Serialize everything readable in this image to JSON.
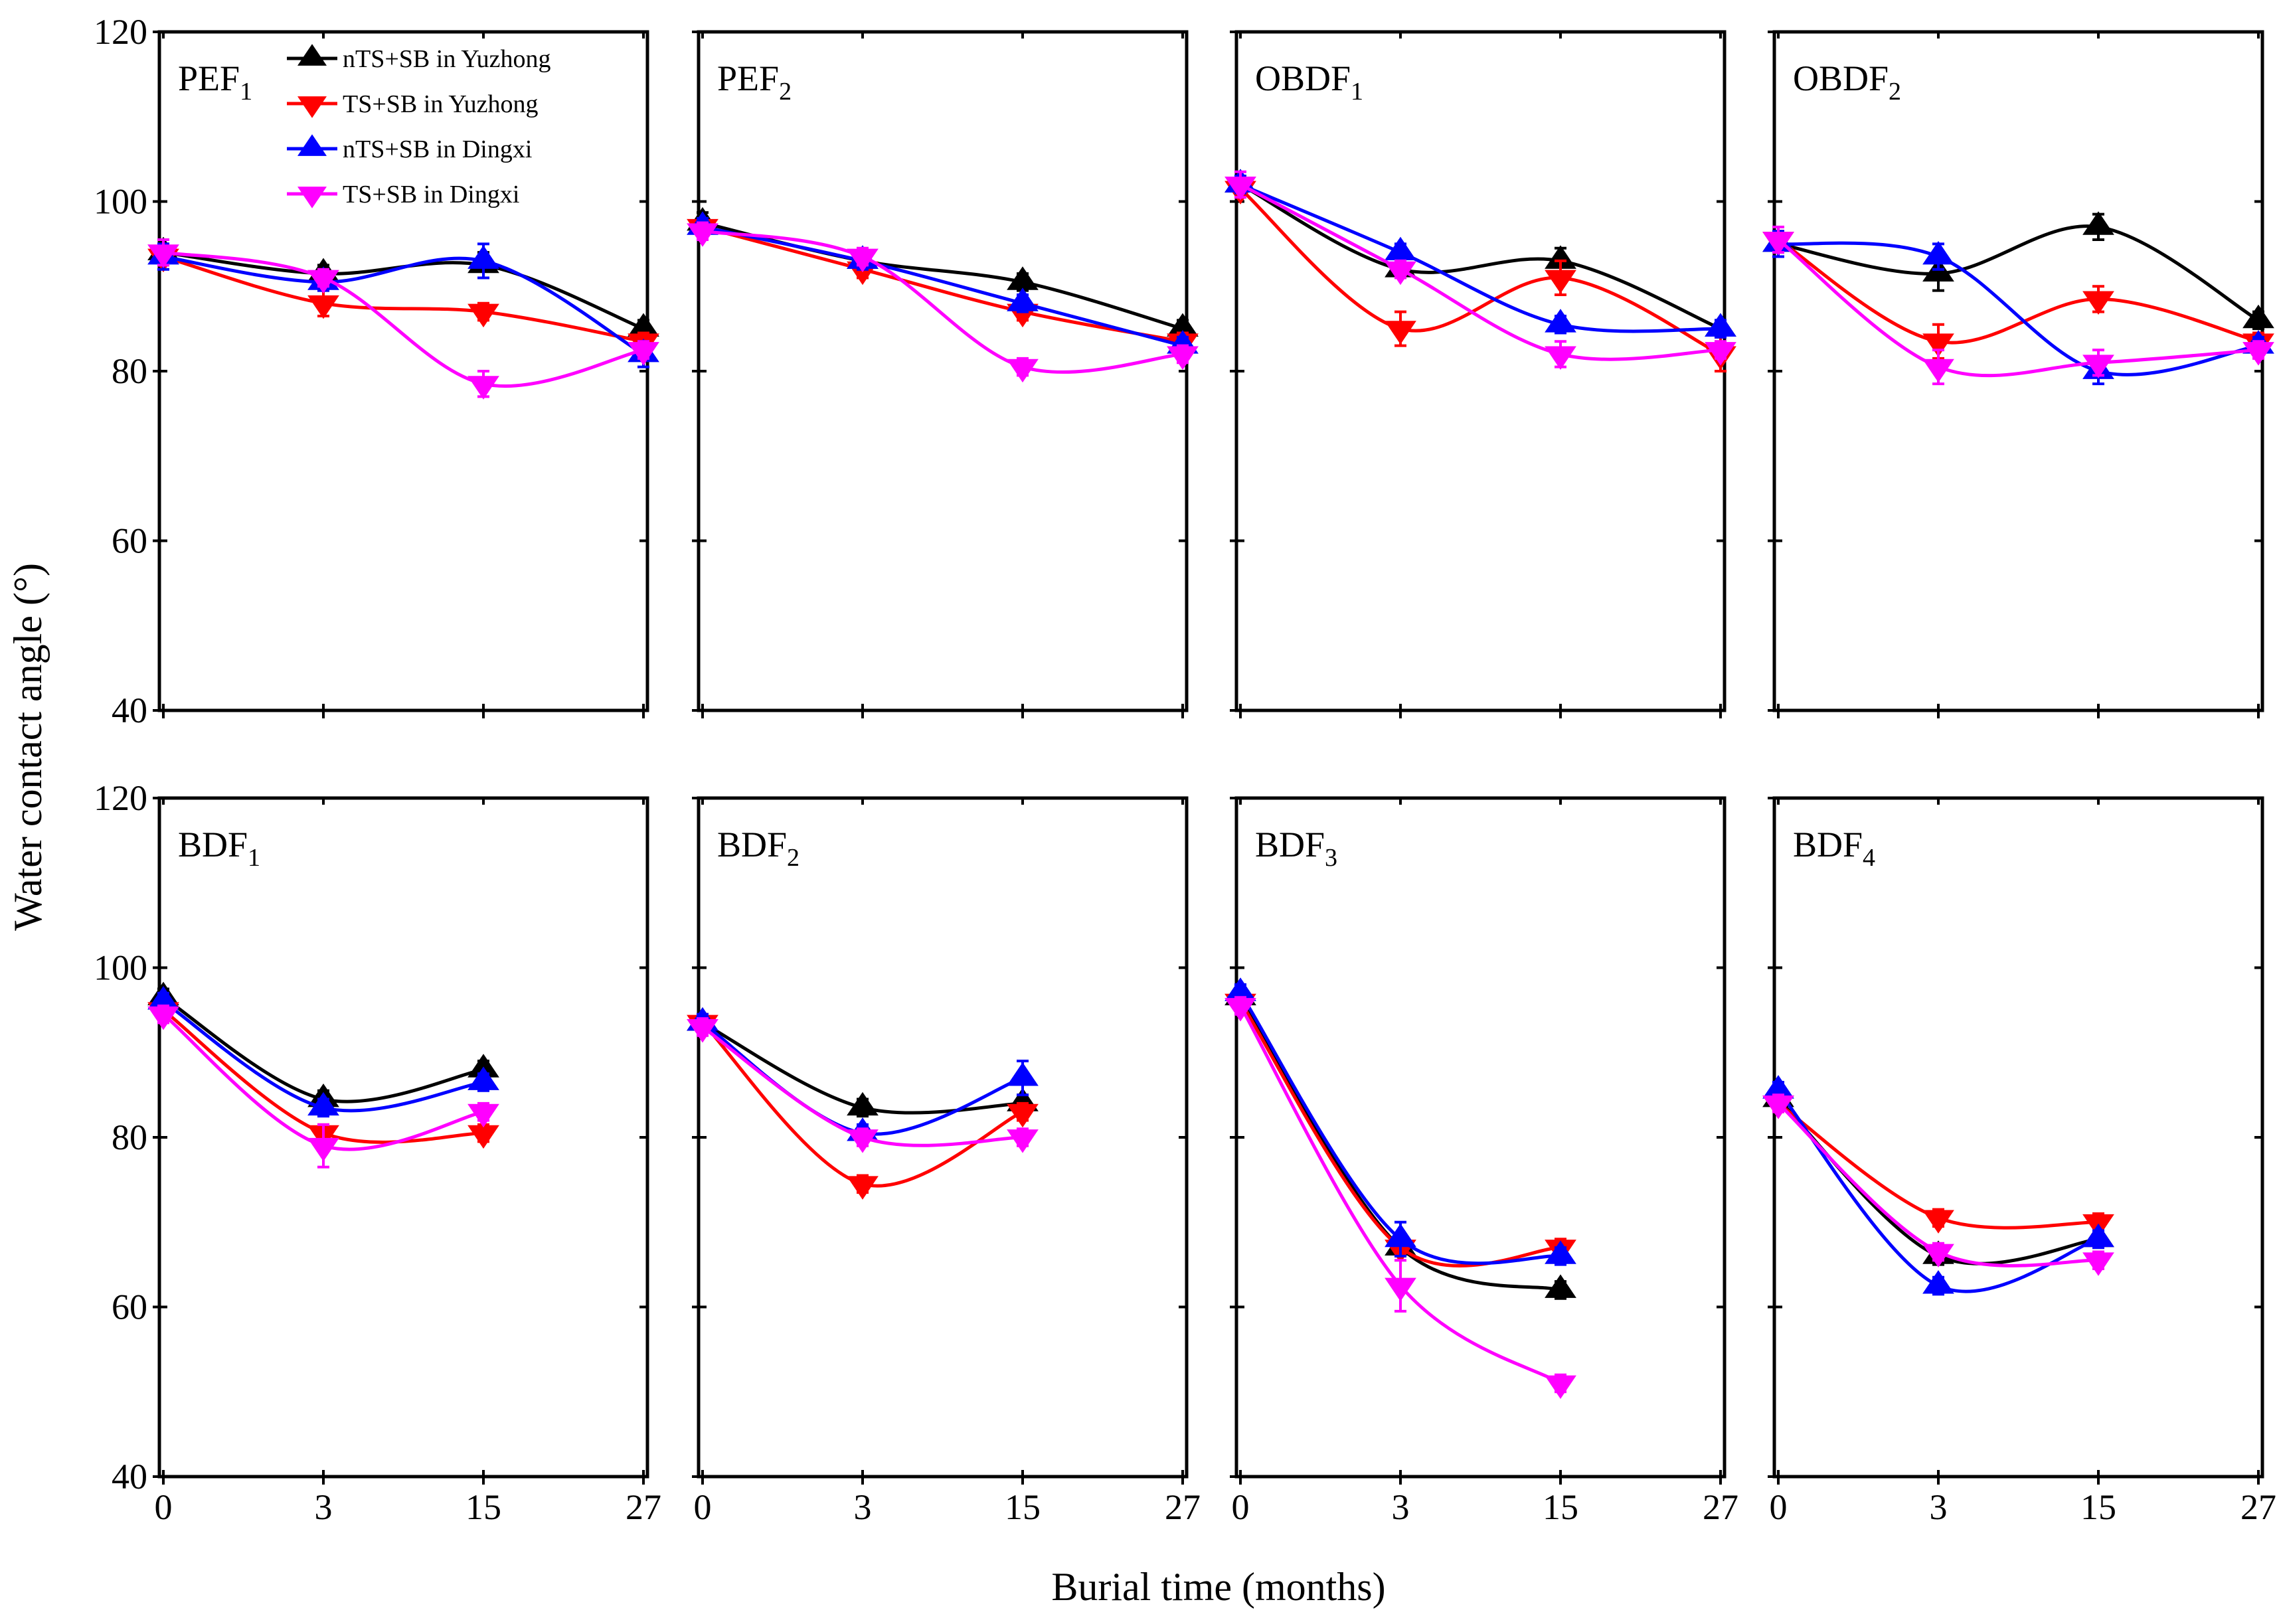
{
  "chart_data": {
    "type": "line",
    "ylabel": "Water contact angle (°)",
    "xlabel": "Burial time (months)",
    "x": [
      "0",
      "3",
      "15",
      "27"
    ],
    "ylim": [
      40,
      120
    ],
    "yticks": [
      40,
      60,
      80,
      100,
      120
    ],
    "colors": {
      "nTS+SB in Yuzhong": "#000000",
      "TS+SB in Yuzhong": "#ff0000",
      "nTS+SB in Dingxi": "#0000ff",
      "TS+SB in Dingxi": "#ff00ff"
    },
    "legend": [
      {
        "name": "nTS+SB in Yuzhong",
        "marker": "triangle-up"
      },
      {
        "name": "TS+SB in Yuzhong",
        "marker": "triangle-down"
      },
      {
        "name": "nTS+SB in Dingxi",
        "marker": "triangle-up"
      },
      {
        "name": "TS+SB in Dingxi",
        "marker": "triangle-down"
      }
    ],
    "panels": [
      {
        "title": "PEF",
        "sub": "1",
        "series": [
          {
            "name": "nTS+SB in Yuzhong",
            "values": [
              94,
              91.5,
              92.5,
              85
            ],
            "errors": [
              1,
              1,
              1.5,
              1
            ]
          },
          {
            "name": "TS+SB in Yuzhong",
            "values": [
              93.5,
              88,
              87,
              83.5
            ],
            "errors": [
              1,
              1.5,
              1,
              1
            ]
          },
          {
            "name": "nTS+SB in Dingxi",
            "values": [
              93.5,
              90.5,
              93,
              82
            ],
            "errors": [
              1.5,
              1,
              2,
              1.5
            ]
          },
          {
            "name": "TS+SB in Dingxi",
            "values": [
              94,
              91,
              78.5,
              82.5
            ],
            "errors": [
              1.5,
              1,
              1.5,
              1
            ]
          }
        ]
      },
      {
        "title": "PEF",
        "sub": "2",
        "series": [
          {
            "name": "nTS+SB in Yuzhong",
            "values": [
              97.5,
              93,
              90.5,
              85
            ],
            "errors": [
              1.2,
              1,
              1,
              1
            ]
          },
          {
            "name": "TS+SB in Yuzhong",
            "values": [
              97,
              92,
              87,
              83.5
            ],
            "errors": [
              1,
              1,
              1,
              1
            ]
          },
          {
            "name": "nTS+SB in Dingxi",
            "values": [
              97,
              93,
              88,
              83
            ],
            "errors": [
              1,
              1,
              1,
              1
            ]
          },
          {
            "name": "TS+SB in Dingxi",
            "values": [
              96.5,
              93.5,
              80.5,
              82
            ],
            "errors": [
              1,
              1,
              1,
              1
            ]
          }
        ]
      },
      {
        "title": "OBDF",
        "sub": "1",
        "series": [
          {
            "name": "nTS+SB in Yuzhong",
            "values": [
              102,
              92,
              93,
              85
            ],
            "errors": [
              1,
              1,
              1.5,
              1
            ]
          },
          {
            "name": "TS+SB in Yuzhong",
            "values": [
              101.5,
              85,
              91,
              82
            ],
            "errors": [
              1,
              2,
              2,
              2
            ]
          },
          {
            "name": "nTS+SB in Dingxi",
            "values": [
              102,
              94,
              85.5,
              85
            ],
            "errors": [
              1,
              1,
              1,
              1
            ]
          },
          {
            "name": "TS+SB in Dingxi",
            "values": [
              102,
              92,
              82,
              82.5
            ],
            "errors": [
              1.5,
              1,
              1.5,
              1
            ]
          }
        ]
      },
      {
        "title": "OBDF",
        "sub": "2",
        "series": [
          {
            "name": "nTS+SB in Yuzhong",
            "values": [
              95,
              91.5,
              97,
              86
            ],
            "errors": [
              1,
              2,
              1.5,
              1
            ]
          },
          {
            "name": "TS+SB in Yuzhong",
            "values": [
              95.5,
              83.5,
              88.5,
              83.5
            ],
            "errors": [
              1,
              2,
              1.5,
              1
            ]
          },
          {
            "name": "nTS+SB in Dingxi",
            "values": [
              95,
              93.5,
              80,
              83
            ],
            "errors": [
              1.5,
              1.5,
              1.5,
              1
            ]
          },
          {
            "name": "TS+SB in Dingxi",
            "values": [
              95.5,
              80.5,
              81,
              82.5
            ],
            "errors": [
              1.5,
              2,
              1.5,
              1
            ]
          }
        ]
      },
      {
        "title": "BDF",
        "sub": "1",
        "series": [
          {
            "name": "nTS+SB in Yuzhong",
            "values": [
              96.5,
              84.5,
              88
            ],
            "errors": [
              1,
              1,
              1
            ]
          },
          {
            "name": "TS+SB in Yuzhong",
            "values": [
              95,
              80.5,
              80.5
            ],
            "errors": [
              1,
              1,
              1
            ]
          },
          {
            "name": "nTS+SB in Dingxi",
            "values": [
              96,
              83.5,
              86.5
            ],
            "errors": [
              1,
              1,
              1
            ]
          },
          {
            "name": "TS+SB in Dingxi",
            "values": [
              94.5,
              79,
              83
            ],
            "errors": [
              1,
              2.5,
              1
            ]
          }
        ]
      },
      {
        "title": "BDF",
        "sub": "2",
        "series": [
          {
            "name": "nTS+SB in Yuzhong",
            "values": [
              93.5,
              83.5,
              84
            ],
            "errors": [
              1,
              1,
              1
            ]
          },
          {
            "name": "TS+SB in Yuzhong",
            "values": [
              93.5,
              74.5,
              83
            ],
            "errors": [
              1,
              1,
              1
            ]
          },
          {
            "name": "nTS+SB in Dingxi",
            "values": [
              93.5,
              80.5,
              87
            ],
            "errors": [
              1,
              1,
              2
            ]
          },
          {
            "name": "TS+SB in Dingxi",
            "values": [
              93,
              80,
              80
            ],
            "errors": [
              1,
              1,
              1
            ]
          }
        ]
      },
      {
        "title": "BDF",
        "sub": "3",
        "series": [
          {
            "name": "nTS+SB in Yuzhong",
            "values": [
              96.5,
              67,
              62
            ],
            "errors": [
              1,
              1,
              1
            ]
          },
          {
            "name": "TS+SB in Yuzhong",
            "values": [
              96,
              67,
              67
            ],
            "errors": [
              1,
              1,
              1
            ]
          },
          {
            "name": "nTS+SB in Dingxi",
            "values": [
              97,
              68,
              66
            ],
            "errors": [
              1,
              2,
              1
            ]
          },
          {
            "name": "TS+SB in Dingxi",
            "values": [
              95.5,
              62.5,
              51
            ],
            "errors": [
              1,
              3,
              1
            ]
          }
        ]
      },
      {
        "title": "BDF",
        "sub": "4",
        "series": [
          {
            "name": "nTS+SB in Yuzhong",
            "values": [
              84.5,
              66,
              68
            ],
            "errors": [
              1,
              1,
              1
            ]
          },
          {
            "name": "TS+SB in Yuzhong",
            "values": [
              84,
              70.5,
              70
            ],
            "errors": [
              1,
              1,
              1
            ]
          },
          {
            "name": "nTS+SB in Dingxi",
            "values": [
              85.5,
              62.5,
              68
            ],
            "errors": [
              1,
              1,
              1
            ]
          },
          {
            "name": "TS+SB in Dingxi",
            "values": [
              84,
              66.5,
              65.5
            ],
            "errors": [
              1,
              1,
              1
            ]
          }
        ]
      }
    ]
  }
}
